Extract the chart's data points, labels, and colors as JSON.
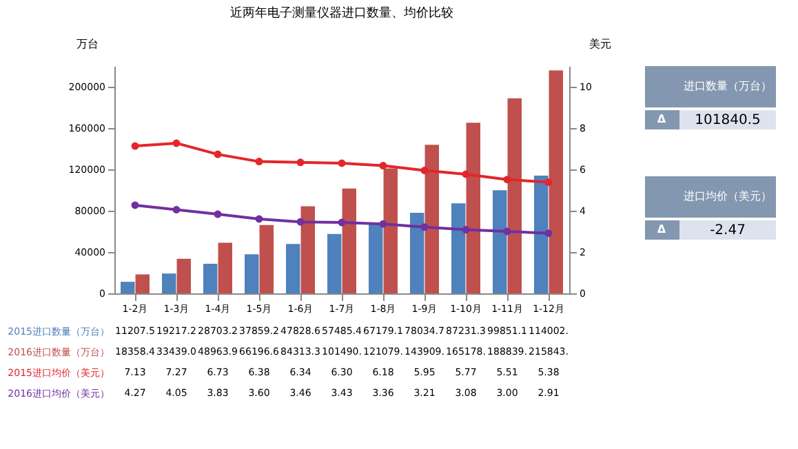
{
  "chart_data": [
    {
      "type": "bar",
      "title": "近两年电子测量仪器进口数量、均价比较",
      "ylabel": "万台",
      "y2label": "美元",
      "categories": [
        "1-2月",
        "1-3月",
        "1-4月",
        "1-5月",
        "1-6月",
        "1-7月",
        "1-8月",
        "1-9月",
        "1-10月",
        "1-11月",
        "1-12月"
      ],
      "series": [
        {
          "name": "2015进口数量（万台）",
          "color": "#4f81bd",
          "values": [
            11207.5,
            19217.2,
            28703.2,
            37859.2,
            47828.6,
            57485.4,
            67179.1,
            78034.7,
            87231.3,
            99851.1,
            114002
          ],
          "value_labels": [
            "11207.5",
            "19217.2",
            "28703.2",
            "37859.2",
            "47828.6",
            "57485.4",
            "67179.1",
            "78034.7",
            "87231.3",
            "99851.1",
            "114002."
          ]
        },
        {
          "name": "2016进口数量（万台）",
          "color": "#c0504d",
          "values": [
            18358.4,
            33439.0,
            48963.9,
            66196.6,
            84313.3,
            101490,
            121079,
            143909,
            165178,
            188839,
            215843
          ],
          "value_labels": [
            "18358.4",
            "33439.0",
            "48963.9",
            "66196.6",
            "84313.3",
            "101490.",
            "121079.",
            "143909.",
            "165178.",
            "188839.",
            "215843."
          ]
        },
        {
          "name": "2015进口均价（美元）",
          "type": "line",
          "axis": "y2",
          "color": "#e3262b",
          "values": [
            7.13,
            7.27,
            6.73,
            6.38,
            6.34,
            6.3,
            6.18,
            5.95,
            5.77,
            5.51,
            5.38
          ],
          "value_labels": [
            "7.13",
            "7.27",
            "6.73",
            "6.38",
            "6.34",
            "6.30",
            "6.18",
            "5.95",
            "5.77",
            "5.51",
            "5.38"
          ]
        },
        {
          "name": "2016进口均价（美元）",
          "type": "line",
          "axis": "y2",
          "color": "#7030a0",
          "values": [
            4.27,
            4.05,
            3.83,
            3.6,
            3.46,
            3.43,
            3.36,
            3.21,
            3.08,
            3.0,
            2.91
          ],
          "value_labels": [
            "4.27",
            "4.05",
            "3.83",
            "3.60",
            "3.46",
            "3.43",
            "3.36",
            "3.21",
            "3.08",
            "3.00",
            "2.91"
          ]
        }
      ],
      "ylim": [
        0,
        220000
      ],
      "yticks": [
        0,
        40000,
        80000,
        120000,
        160000,
        200000
      ],
      "y2lim": [
        0,
        11
      ],
      "y2ticks": [
        0,
        2,
        4,
        6,
        8,
        10
      ],
      "marker": "circle"
    },
    {
      "type": "other",
      "annotations": [
        "进口数量（万台）",
        "Δ",
        "101840.5",
        "进口均价（美元）",
        "Δ",
        "-2.47"
      ]
    }
  ]
}
